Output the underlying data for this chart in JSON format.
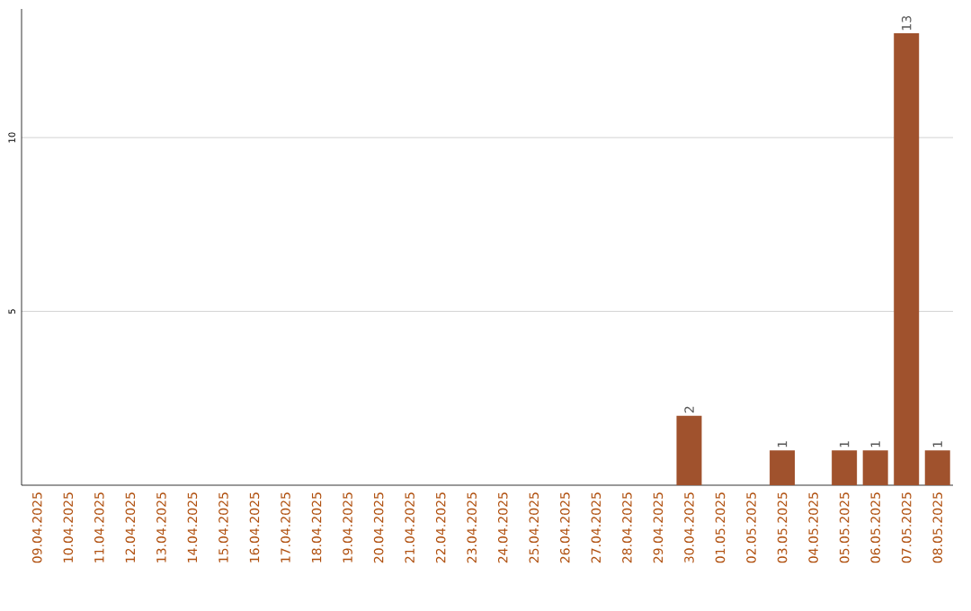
{
  "chart_data": {
    "type": "bar",
    "categories": [
      "09.04.2025",
      "10.04.2025",
      "11.04.2025",
      "12.04.2025",
      "13.04.2025",
      "14.04.2025",
      "15.04.2025",
      "16.04.2025",
      "17.04.2025",
      "18.04.2025",
      "19.04.2025",
      "20.04.2025",
      "21.04.2025",
      "22.04.2025",
      "23.04.2025",
      "24.04.2025",
      "25.04.2025",
      "26.04.2025",
      "27.04.2025",
      "28.04.2025",
      "29.04.2025",
      "30.04.2025",
      "01.05.2025",
      "02.05.2025",
      "03.05.2025",
      "04.05.2025",
      "05.05.2025",
      "06.05.2025",
      "07.05.2025",
      "08.05.2025"
    ],
    "values": [
      0,
      0,
      0,
      0,
      0,
      0,
      0,
      0,
      0,
      0,
      0,
      0,
      0,
      0,
      0,
      0,
      0,
      0,
      0,
      0,
      0,
      2,
      0,
      0,
      1,
      0,
      1,
      1,
      13,
      1
    ],
    "value_labels": [
      null,
      null,
      null,
      null,
      null,
      null,
      null,
      null,
      null,
      null,
      null,
      null,
      null,
      null,
      null,
      null,
      null,
      null,
      null,
      null,
      null,
      "2",
      null,
      null,
      "1",
      null,
      "1",
      "1",
      "13",
      "1"
    ],
    "color": "#a0522d",
    "ylim": [
      0,
      13.7
    ],
    "yticks": [
      5,
      10
    ],
    "grid": "y"
  }
}
